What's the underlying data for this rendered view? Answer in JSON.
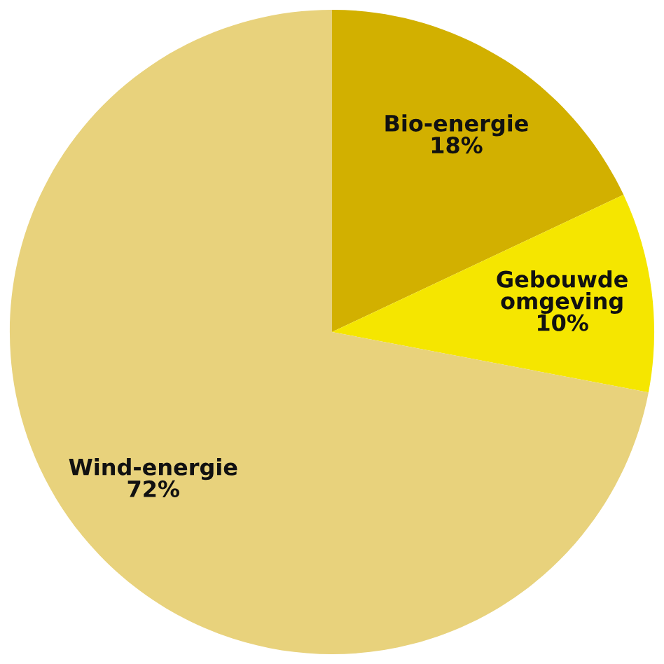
{
  "chart_data": {
    "type": "pie",
    "categories": [
      "Bio-energie",
      "Gebouwde omgeving",
      "Wind-energie"
    ],
    "values": [
      18,
      10,
      72
    ],
    "value_labels": [
      "18%",
      "10%",
      "72%"
    ],
    "colors": [
      "#d2b000",
      "#f5e600",
      "#e8d27c"
    ]
  }
}
